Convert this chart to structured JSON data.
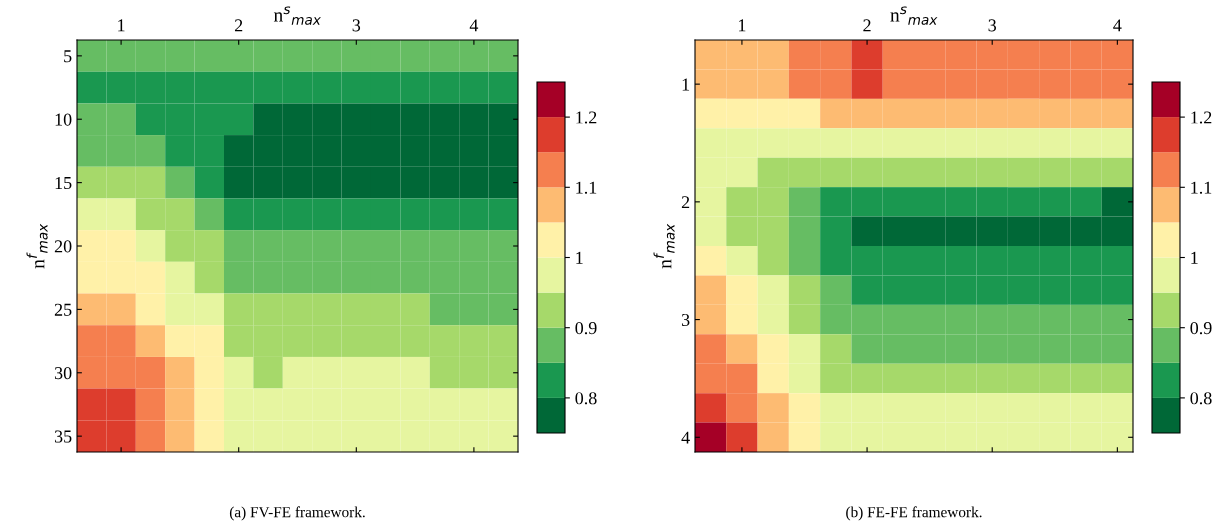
{
  "chart_data": [
    {
      "type": "heatmap",
      "xlabel": "n$^{s}$$_{max}$",
      "ylabel": "n$^{f}$$_{max}$",
      "annotations": [
        "(a) FV-FE framework."
      ],
      "categories": [
        null,
        "1",
        null,
        null,
        null,
        "2",
        null,
        null,
        null,
        "3",
        null,
        null,
        null,
        "4",
        null
      ],
      "y_categories": [
        "5",
        null,
        "10",
        null,
        "15",
        null,
        "20",
        null,
        "25",
        null,
        "30",
        null,
        "35"
      ],
      "clim": [
        0.75,
        1.25
      ],
      "cticks": [
        0.8,
        0.9,
        1,
        1.1,
        1.2
      ],
      "colors": [
        "#006837",
        "#1a9850",
        "#66bd63",
        "#a6d96a",
        "#e6f5a0",
        "#fff1a8",
        "#fdbb72",
        "#f57f4f",
        "#dd3d2d",
        "#a50026"
      ],
      "cells": [
        [
          0.875,
          0.875,
          0.875,
          0.875,
          0.875,
          0.875,
          0.875,
          0.875,
          0.875,
          0.875,
          0.875,
          0.875,
          0.875,
          0.875,
          0.875
        ],
        [
          0.825,
          0.825,
          0.825,
          0.825,
          0.825,
          0.825,
          0.825,
          0.825,
          0.825,
          0.825,
          0.825,
          0.825,
          0.825,
          0.825,
          0.825
        ],
        [
          0.875,
          0.875,
          0.825,
          0.825,
          0.825,
          0.825,
          0.775,
          0.775,
          0.775,
          0.775,
          0.775,
          0.775,
          0.775,
          0.775,
          0.775
        ],
        [
          0.875,
          0.875,
          0.875,
          0.825,
          0.825,
          0.775,
          0.775,
          0.775,
          0.775,
          0.775,
          0.775,
          0.775,
          0.775,
          0.775,
          0.775
        ],
        [
          0.925,
          0.925,
          0.925,
          0.875,
          0.825,
          0.775,
          0.775,
          0.775,
          0.775,
          0.775,
          0.775,
          0.775,
          0.775,
          0.775,
          0.775
        ],
        [
          0.975,
          0.975,
          0.925,
          0.925,
          0.875,
          0.825,
          0.825,
          0.825,
          0.825,
          0.825,
          0.825,
          0.825,
          0.825,
          0.825,
          0.825
        ],
        [
          1.025,
          1.025,
          0.975,
          0.925,
          0.925,
          0.875,
          0.875,
          0.875,
          0.875,
          0.875,
          0.875,
          0.875,
          0.875,
          0.875,
          0.875
        ],
        [
          1.025,
          1.025,
          1.025,
          0.975,
          0.925,
          0.875,
          0.875,
          0.875,
          0.875,
          0.875,
          0.875,
          0.875,
          0.875,
          0.875,
          0.875
        ],
        [
          1.075,
          1.075,
          1.025,
          0.975,
          0.975,
          0.925,
          0.925,
          0.925,
          0.925,
          0.925,
          0.925,
          0.925,
          0.875,
          0.875,
          0.875
        ],
        [
          1.125,
          1.125,
          1.075,
          1.025,
          1.025,
          0.925,
          0.925,
          0.925,
          0.925,
          0.925,
          0.925,
          0.925,
          0.925,
          0.925,
          0.925
        ],
        [
          1.125,
          1.125,
          1.125,
          1.075,
          1.025,
          0.975,
          0.925,
          0.975,
          0.975,
          0.975,
          0.975,
          0.975,
          0.925,
          0.925,
          0.925
        ],
        [
          1.175,
          1.175,
          1.125,
          1.075,
          1.025,
          0.975,
          0.975,
          0.975,
          0.975,
          0.975,
          0.975,
          0.975,
          0.975,
          0.975,
          0.975
        ],
        [
          1.175,
          1.175,
          1.125,
          1.075,
          1.025,
          0.975,
          0.975,
          0.975,
          0.975,
          0.975,
          0.975,
          0.975,
          0.975,
          0.975,
          0.975
        ]
      ]
    },
    {
      "type": "heatmap",
      "xlabel": "n$^{s}$$_{max}$",
      "ylabel": "n$^{f}$$_{max}$",
      "annotations": [
        "(b) FE-FE framework."
      ],
      "categories": [
        null,
        "1",
        null,
        null,
        null,
        "2",
        null,
        null,
        null,
        "3",
        null,
        null,
        null,
        "4"
      ],
      "y_categories": [
        null,
        "1",
        null,
        null,
        null,
        "2",
        null,
        null,
        null,
        "3",
        null,
        null,
        null,
        "4"
      ],
      "clim": [
        0.75,
        1.25
      ],
      "cticks": [
        0.8,
        0.9,
        1,
        1.1,
        1.2
      ],
      "colors": [
        "#006837",
        "#1a9850",
        "#66bd63",
        "#a6d96a",
        "#e6f5a0",
        "#fff1a8",
        "#fdbb72",
        "#f57f4f",
        "#dd3d2d",
        "#a50026"
      ],
      "cells": [
        [
          1.075,
          1.075,
          1.075,
          1.125,
          1.125,
          1.175,
          1.125,
          1.125,
          1.125,
          1.125,
          1.125,
          1.125,
          1.125,
          1.125
        ],
        [
          1.075,
          1.075,
          1.075,
          1.125,
          1.125,
          1.175,
          1.125,
          1.125,
          1.125,
          1.125,
          1.125,
          1.125,
          1.125,
          1.125
        ],
        [
          1.025,
          1.025,
          1.025,
          1.025,
          1.075,
          1.075,
          1.075,
          1.075,
          1.075,
          1.075,
          1.075,
          1.075,
          1.075,
          1.075
        ],
        [
          0.975,
          0.975,
          0.975,
          0.975,
          0.975,
          0.975,
          0.975,
          0.975,
          0.975,
          0.975,
          0.975,
          0.975,
          0.975,
          0.975
        ],
        [
          0.975,
          0.975,
          0.925,
          0.925,
          0.925,
          0.925,
          0.925,
          0.925,
          0.925,
          0.925,
          0.925,
          0.925,
          0.925,
          0.925
        ],
        [
          0.975,
          0.925,
          0.925,
          0.875,
          0.825,
          0.825,
          0.825,
          0.825,
          0.825,
          0.825,
          0.825,
          0.825,
          0.825,
          0.775
        ],
        [
          0.975,
          0.925,
          0.925,
          0.875,
          0.825,
          0.775,
          0.775,
          0.775,
          0.775,
          0.775,
          0.775,
          0.775,
          0.775,
          0.775
        ],
        [
          1.025,
          0.975,
          0.925,
          0.875,
          0.825,
          0.825,
          0.825,
          0.825,
          0.825,
          0.825,
          0.825,
          0.825,
          0.825,
          0.825
        ],
        [
          1.075,
          1.025,
          0.975,
          0.925,
          0.875,
          0.825,
          0.825,
          0.825,
          0.825,
          0.825,
          0.825,
          0.825,
          0.825,
          0.825
        ],
        [
          1.075,
          1.025,
          0.975,
          0.925,
          0.875,
          0.875,
          0.875,
          0.875,
          0.875,
          0.875,
          0.875,
          0.875,
          0.875,
          0.875
        ],
        [
          1.125,
          1.075,
          1.025,
          0.975,
          0.925,
          0.875,
          0.875,
          0.875,
          0.875,
          0.875,
          0.875,
          0.875,
          0.875,
          0.875
        ],
        [
          1.125,
          1.125,
          1.025,
          0.975,
          0.925,
          0.925,
          0.925,
          0.925,
          0.925,
          0.925,
          0.925,
          0.925,
          0.925,
          0.925
        ],
        [
          1.175,
          1.125,
          1.075,
          1.025,
          0.975,
          0.975,
          0.975,
          0.975,
          0.975,
          0.975,
          0.975,
          0.975,
          0.975,
          0.975
        ],
        [
          1.225,
          1.175,
          1.075,
          1.025,
          0.975,
          0.975,
          0.975,
          0.975,
          0.975,
          0.975,
          0.975,
          0.975,
          0.975,
          0.975
        ]
      ]
    }
  ]
}
